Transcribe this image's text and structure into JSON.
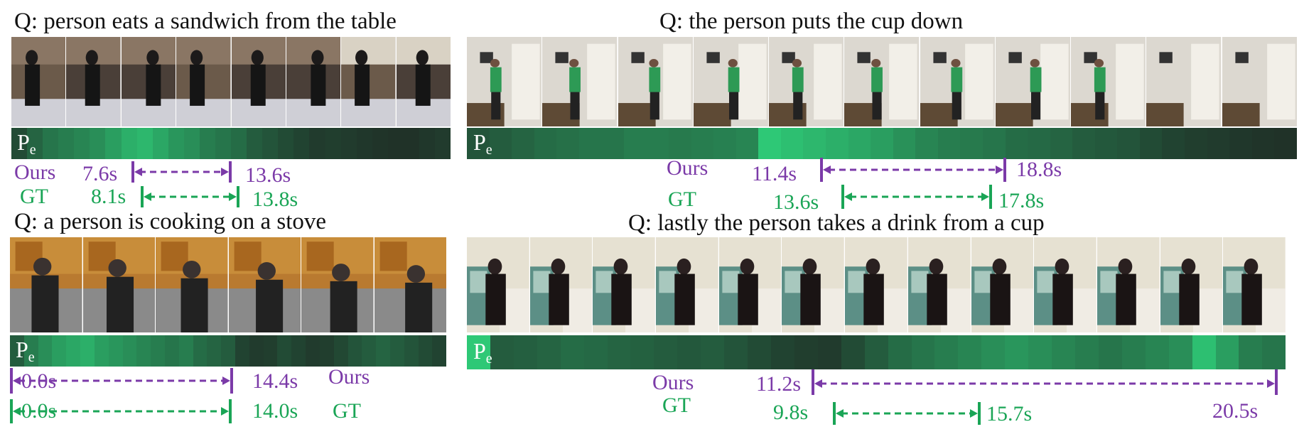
{
  "colors": {
    "ours": "#7b3aa8",
    "gt": "#1aa556",
    "heat_low": "#1f2a24",
    "heat_high": "#2fd07a"
  },
  "panels": [
    {
      "query": "Q:  person eats a sandwich from the table",
      "pe_label": "P",
      "pe_sub": "e",
      "frame_count": 8,
      "frame_scene": "dark-kitchen",
      "heat": [
        0.2,
        0.35,
        0.45,
        0.5,
        0.55,
        0.6,
        0.7,
        0.8,
        0.85,
        0.75,
        0.65,
        0.6,
        0.5,
        0.45,
        0.4,
        0.3,
        0.25,
        0.2,
        0.15,
        0.1,
        0.12,
        0.1,
        0.08,
        0.06,
        0.05,
        0.05,
        0.08,
        0.1
      ],
      "ours_label": "Ours",
      "gt_label": "GT",
      "ours_start": "7.6s",
      "ours_end": "13.6s",
      "gt_start": "8.1s",
      "gt_end": "13.8s"
    },
    {
      "query": "Q:  the person puts the cup down",
      "pe_label": "P",
      "pe_sub": "e",
      "frame_count": 11,
      "frame_scene": "hallway-green",
      "heat": [
        0.25,
        0.3,
        0.35,
        0.4,
        0.42,
        0.45,
        0.45,
        0.5,
        0.5,
        0.48,
        0.5,
        0.52,
        0.55,
        0.95,
        0.9,
        0.85,
        0.8,
        0.75,
        0.7,
        0.62,
        0.55,
        0.5,
        0.48,
        0.45,
        0.4,
        0.38,
        0.35,
        0.3,
        0.28,
        0.25,
        0.2,
        0.15,
        0.12,
        0.1,
        0.08,
        0.06,
        0.05
      ],
      "ours_label": "Ours",
      "gt_label": "GT",
      "ours_start": "11.4s",
      "ours_end": "18.8s",
      "gt_start": "13.6s",
      "gt_end": "17.8s"
    },
    {
      "query": "Q: a person is cooking on a stove",
      "pe_label": "P",
      "pe_sub": "e",
      "frame_count": 6,
      "frame_scene": "wood-kitchen",
      "heat": [
        0.3,
        0.5,
        0.6,
        0.7,
        0.75,
        0.8,
        0.7,
        0.65,
        0.6,
        0.55,
        0.5,
        0.45,
        0.5,
        0.4,
        0.35,
        0.3,
        0.15,
        0.1,
        0.12,
        0.2,
        0.15,
        0.1,
        0.12,
        0.18,
        0.25,
        0.3,
        0.35,
        0.3,
        0.25,
        0.2,
        0.15
      ],
      "ours_label": "Ours",
      "gt_label": "GT",
      "ours_start": "0.0s",
      "ours_end": "14.4s",
      "gt_start": "0.0s",
      "gt_end": "14.0s"
    },
    {
      "query": "Q:  lastly the person takes a drink from a cup",
      "pe_label": "P",
      "pe_sub": "e",
      "frame_count": 13,
      "frame_scene": "dining-table",
      "heat": [
        0.95,
        0.3,
        0.32,
        0.35,
        0.4,
        0.38,
        0.35,
        0.33,
        0.3,
        0.28,
        0.3,
        0.25,
        0.2,
        0.15,
        0.12,
        0.1,
        0.2,
        0.3,
        0.4,
        0.45,
        0.5,
        0.55,
        0.6,
        0.65,
        0.6,
        0.55,
        0.5,
        0.45,
        0.5,
        0.55,
        0.6,
        0.9,
        0.7,
        0.5,
        0.45
      ],
      "ours_label": "Ours",
      "gt_label": "GT",
      "ours_start": "11.2s",
      "ours_end": "20.5s",
      "gt_start": "9.8s",
      "gt_end": "15.7s"
    }
  ]
}
